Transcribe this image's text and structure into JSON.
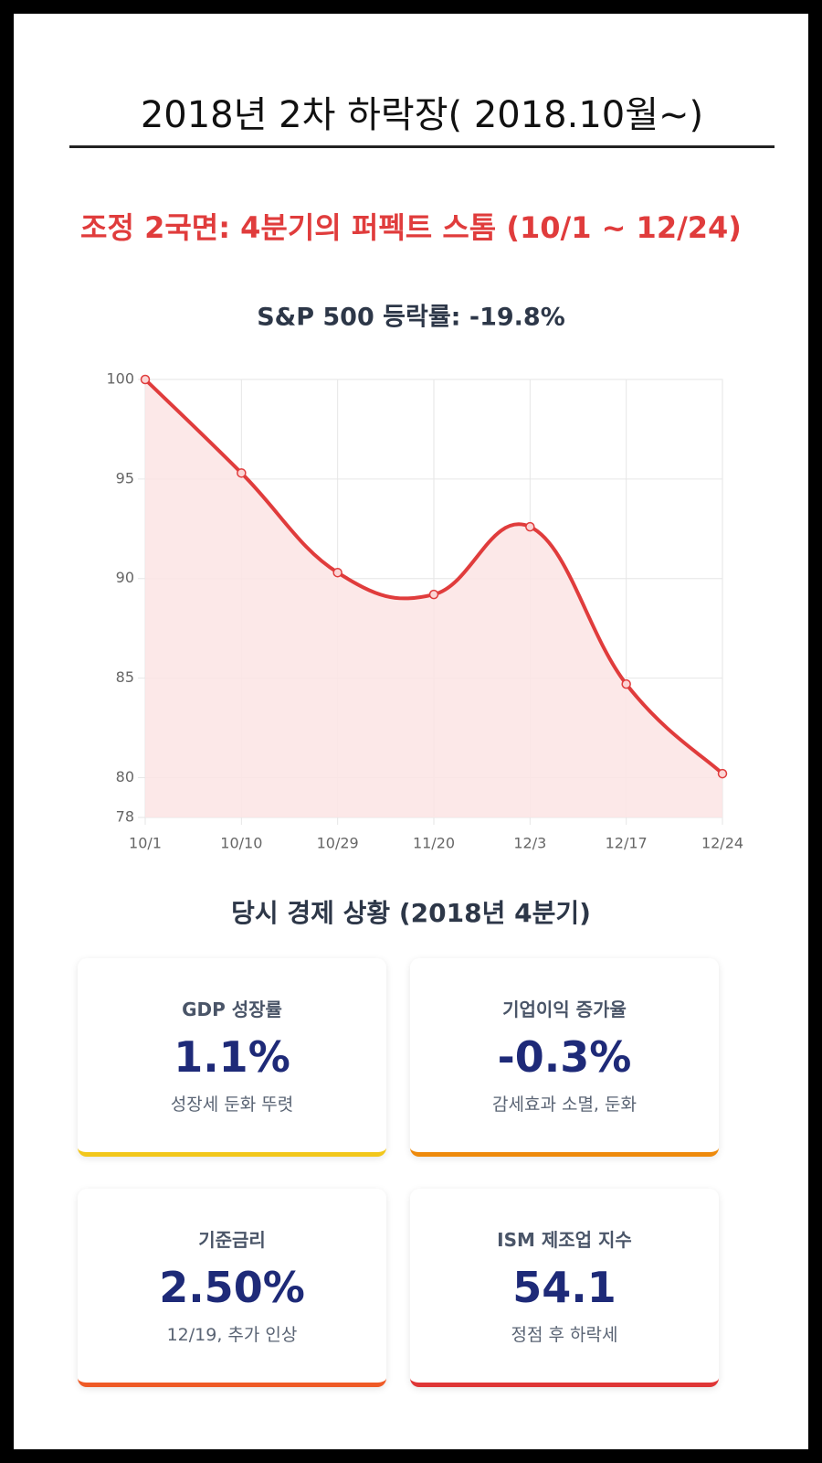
{
  "header": {
    "title": "2018년 2차 하락장( 2018.10월~)"
  },
  "subtitle": "조정 2국면: 4분기의 퍼펙트 스톰 (10/1 ~ 12/24)",
  "chart_data": {
    "type": "line",
    "title": "S&P 500 등락률: -19.8%",
    "categories": [
      "10/1",
      "10/10",
      "10/29",
      "11/20",
      "12/3",
      "12/17",
      "12/24"
    ],
    "values": [
      100,
      95.3,
      90.3,
      89.2,
      92.6,
      84.7,
      80.2
    ],
    "color": "#e03c3c",
    "fill_color": "#fce4e4",
    "ylim": [
      78,
      100
    ],
    "yticks": [
      78,
      80,
      85,
      90,
      95,
      100
    ],
    "grid": true
  },
  "section_title": "당시 경제 상황 (2018년 4분기)",
  "cards": [
    {
      "label": "GDP 성장률",
      "value": "1.1%",
      "note": "성장세 둔화 뚜렷",
      "color": "#f2c71b"
    },
    {
      "label": "기업이익 증가율",
      "value": "-0.3%",
      "note": "감세효과 소멸, 둔화",
      "color": "#ee8a0c"
    },
    {
      "label": "기준금리",
      "value": "2.50%",
      "note": "12/19, 추가 인상",
      "color": "#ef5a26"
    },
    {
      "label": "ISM 제조업 지수",
      "value": "54.1",
      "note": "정점 후 하락세",
      "color": "#df3636"
    }
  ]
}
